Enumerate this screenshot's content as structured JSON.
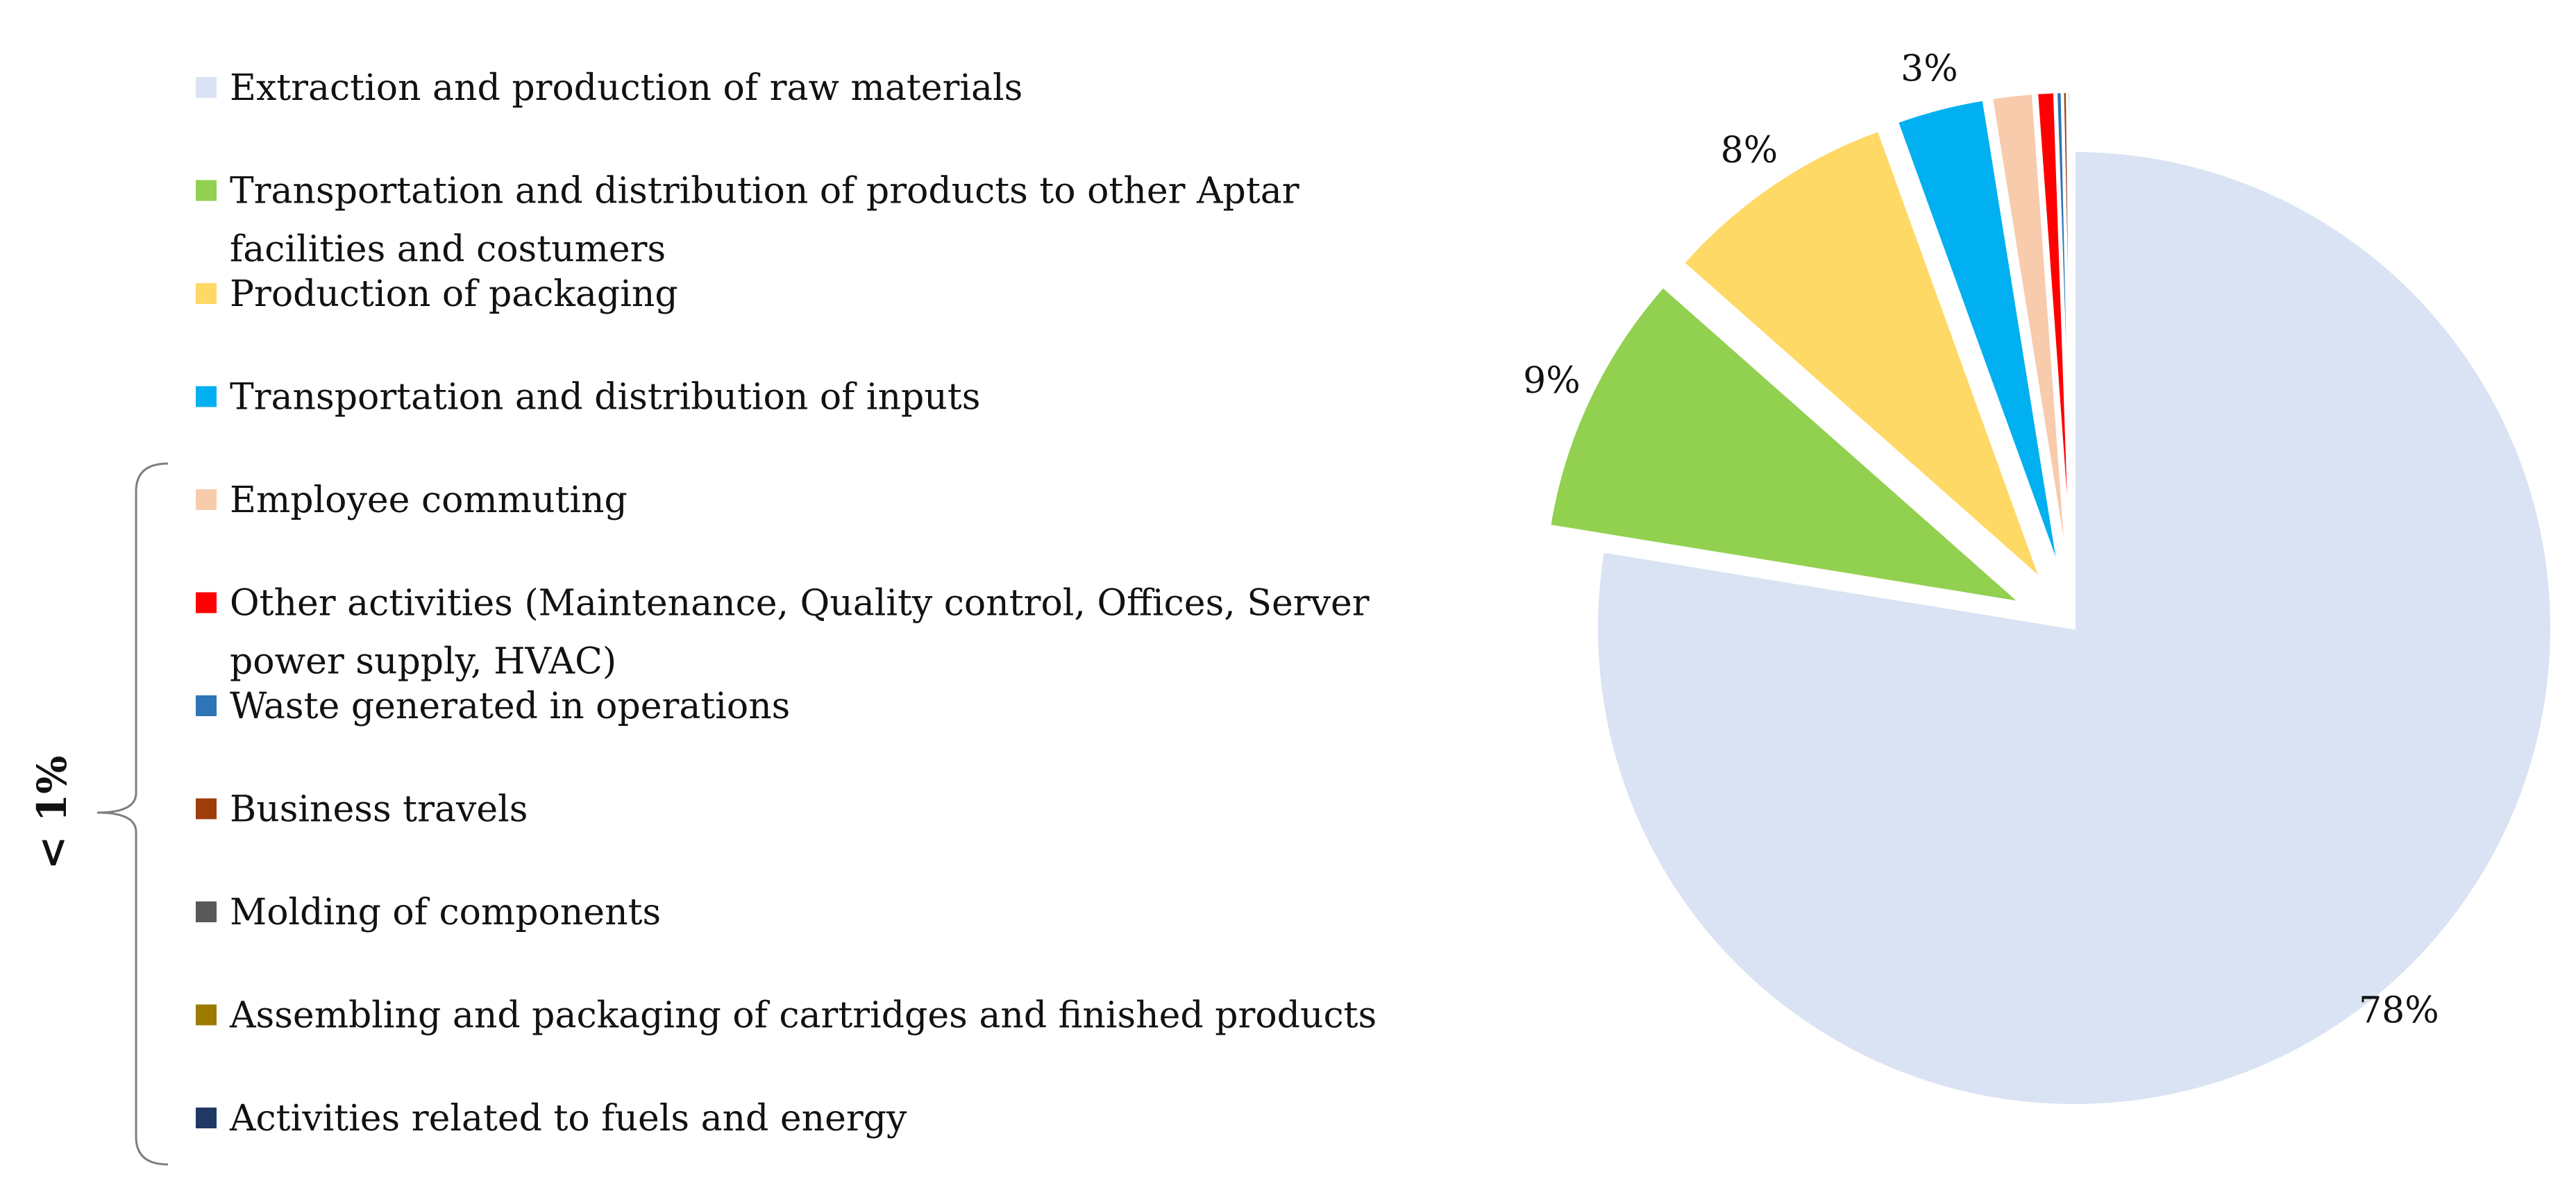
{
  "chart_data": {
    "type": "pie",
    "title": "",
    "categories": [
      "Extraction and production of raw materials",
      "Transportation and distribution of products to other Aptar facilities and costumers",
      "Production of packaging",
      "Transportation and distribution of inputs",
      "Employee commuting",
      "Other activities (Maintenance, Quality control, Offices, Server power supply, HVAC)",
      "Waste generated in operations",
      "Business travels",
      "Molding of components",
      "Assembling and packaging of cartridges and finished products",
      "Activities related to fuels and energy"
    ],
    "legend_lines": [
      [
        "Extraction and production of raw materials"
      ],
      [
        "Transportation and distribution of products to other Aptar",
        "facilities and costumers"
      ],
      [
        "Production of packaging"
      ],
      [
        "Transportation and distribution of inputs"
      ],
      [
        "Employee commuting"
      ],
      [
        "Other activities (Maintenance, Quality control, Offices, Server",
        "power supply, HVAC)"
      ],
      [
        "Waste generated in operations"
      ],
      [
        "Business travels"
      ],
      [
        "Molding of components"
      ],
      [
        "Assembling and packaging of cartridges and finished products"
      ],
      [
        "Activities related to fuels and energy"
      ]
    ],
    "values": [
      78,
      9,
      8,
      3,
      1.4,
      0.6,
      0.2,
      0.15,
      0.1,
      0.05,
      0.05
    ],
    "colors": [
      "#dae3f3",
      "#92d050",
      "#ffd966",
      "#00b0f0",
      "#f8cbad",
      "#ff0000",
      "#2e75b6",
      "#9c3d0a",
      "#595959",
      "#9c7a00",
      "#203864"
    ],
    "data_labels": [
      "78%",
      "9%",
      "8%",
      "3%",
      "",
      "",
      "",
      "",
      "",
      "",
      ""
    ],
    "legend_group_label": "< 1%",
    "legend_position": "left"
  }
}
